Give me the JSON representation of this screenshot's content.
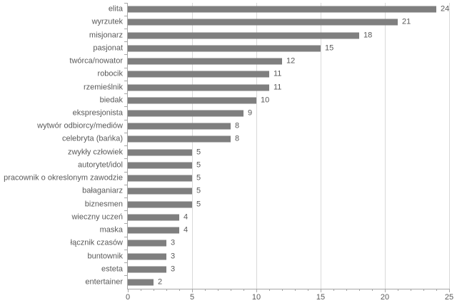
{
  "chart_data": {
    "type": "bar",
    "orientation": "horizontal",
    "title": "",
    "xlabel": "",
    "ylabel": "",
    "categories": [
      "elita",
      "wyrzutek",
      "misjonarz",
      "pasjonat",
      "twórca/nowator",
      "robocik",
      "rzemieślnik",
      "biedak",
      "ekspresjonista",
      "wytwór odbiorcy/mediów",
      "celebryta (bańka)",
      "zwykły człowiek",
      "autorytet/idol",
      "pracownik o okreslonym zawodzie",
      "bałaganiarz",
      "biznesmen",
      "wieczny uczeń",
      "maska",
      "łącznik czasów",
      "buntownik",
      "esteta",
      "entertainer"
    ],
    "values": [
      24,
      21,
      18,
      15,
      12,
      11,
      11,
      10,
      9,
      8,
      8,
      5,
      5,
      5,
      5,
      5,
      4,
      4,
      3,
      3,
      3,
      2
    ],
    "xlim": [
      0,
      25
    ],
    "xticks": [
      0,
      5,
      10,
      15,
      20,
      25
    ],
    "minor_tick_step": 1,
    "grid": true,
    "legend": false,
    "data_labels": true,
    "colors": {
      "bar": "#7f7f7f",
      "gridline": "#d9d9d9",
      "axis_line": "#a6a6a6",
      "text": "#595959",
      "background": "#ffffff"
    }
  }
}
